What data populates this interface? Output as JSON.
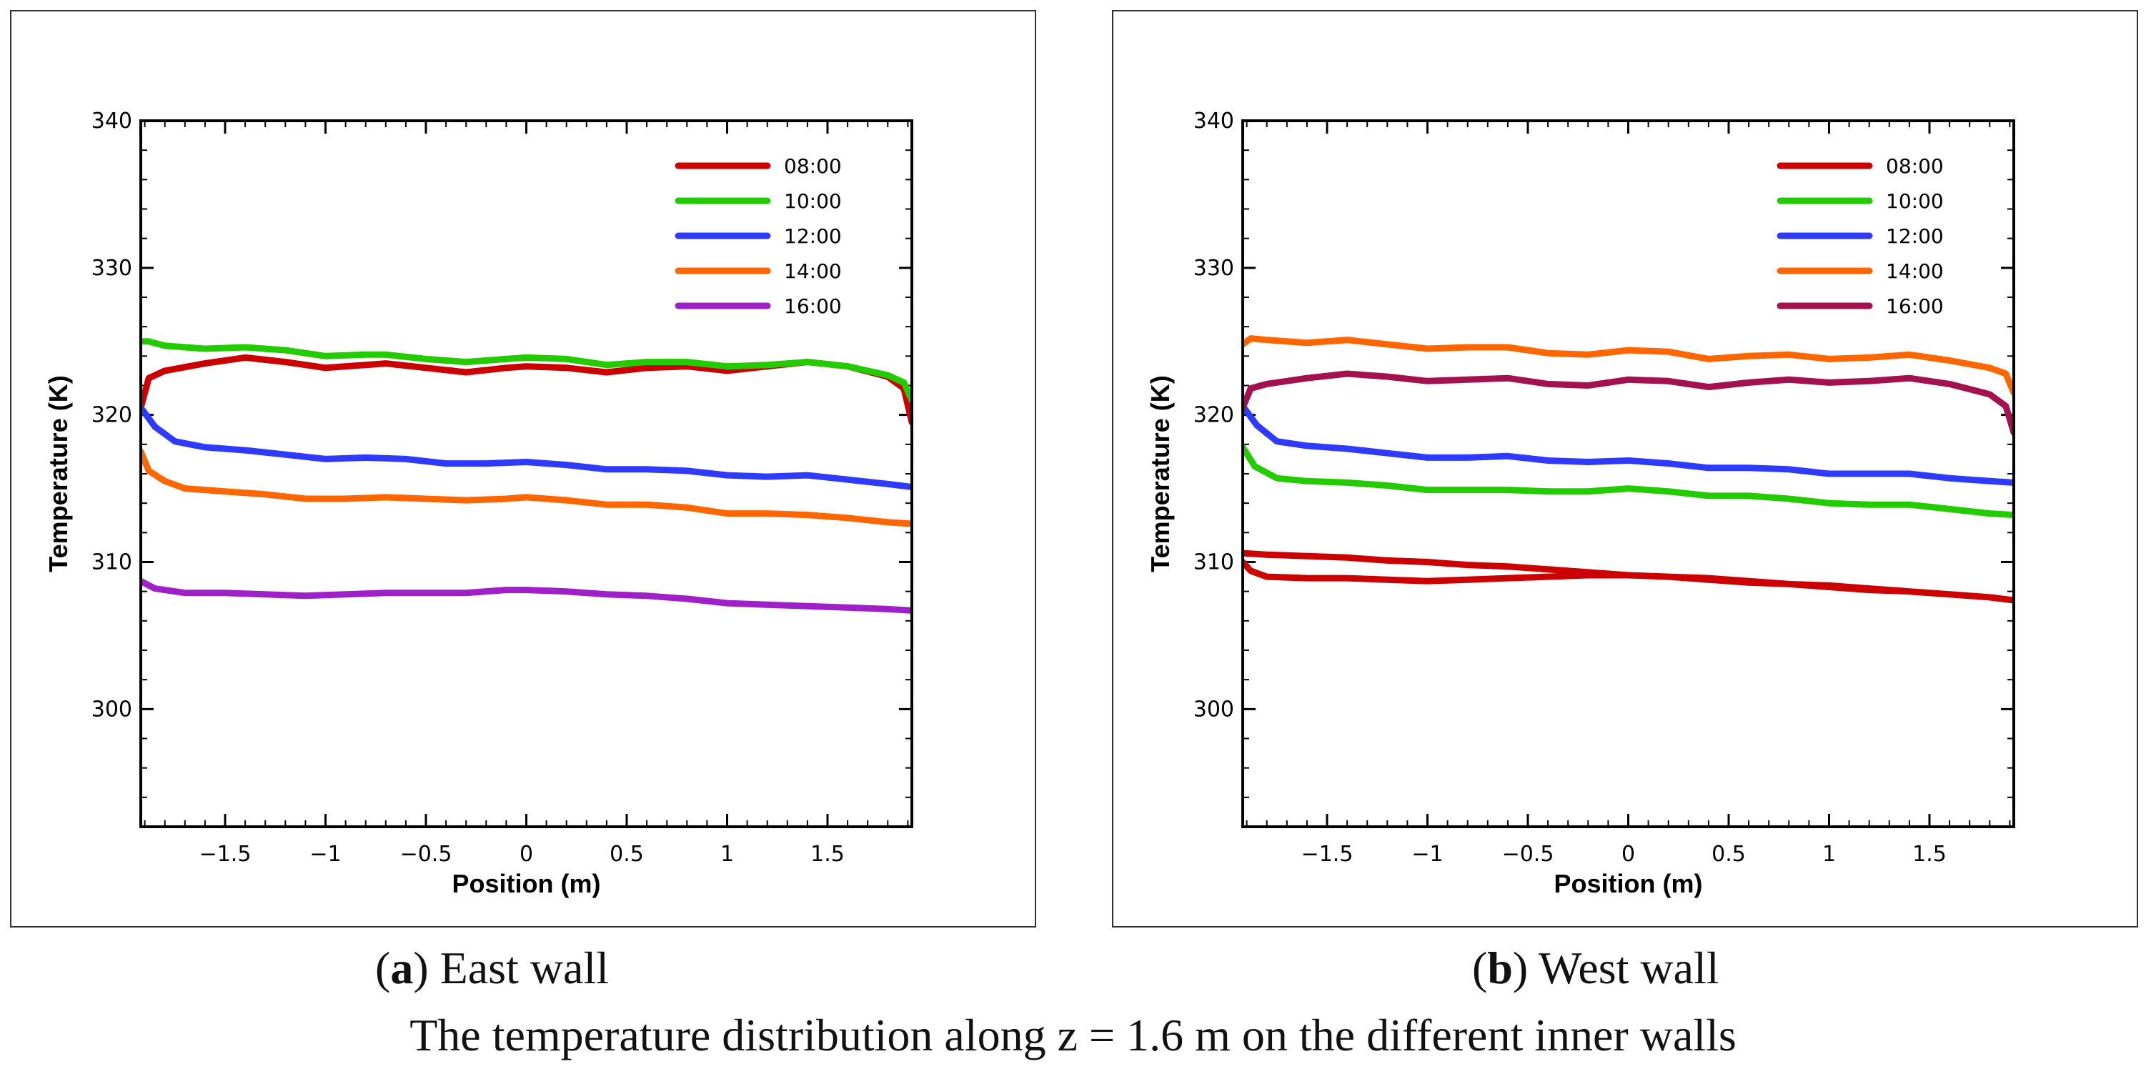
{
  "figure_caption": "The temperature distribution along z = 1.6 m on the different inner walls",
  "panels": [
    {
      "letter": "a",
      "name": "East wall"
    },
    {
      "letter": "b",
      "name": "West wall"
    }
  ],
  "chart_data": [
    {
      "type": "line",
      "panel": "a",
      "title": "East wall",
      "xlabel": "Position (m)",
      "ylabel": "Temperature (K)",
      "xlim": [
        -1.92,
        1.92
      ],
      "ylim": [
        292,
        340
      ],
      "xticks": [
        -1.5,
        -1,
        -0.5,
        0,
        0.5,
        1,
        1.5
      ],
      "xtick_labels": [
        "−1.5",
        "−1",
        "−0.5",
        "0",
        "0.5",
        "1",
        "1.5"
      ],
      "yticks": [
        300,
        310,
        320,
        330,
        340
      ],
      "ytick_labels": [
        "300",
        "310",
        "320",
        "330",
        "340"
      ],
      "legend_position": "top-right",
      "series": [
        {
          "name": "08:00",
          "color": "#cc0000",
          "x": [
            -1.92,
            -1.88,
            -1.8,
            -1.6,
            -1.4,
            -1.2,
            -1.0,
            -0.8,
            -0.7,
            -0.5,
            -0.3,
            -0.1,
            0.0,
            0.2,
            0.4,
            0.6,
            0.8,
            1.0,
            1.2,
            1.4,
            1.6,
            1.8,
            1.88,
            1.92
          ],
          "y": [
            320.5,
            322.5,
            323.0,
            323.5,
            323.9,
            323.6,
            323.2,
            323.4,
            323.5,
            323.2,
            322.9,
            323.2,
            323.3,
            323.2,
            322.9,
            323.2,
            323.3,
            323.0,
            323.3,
            323.6,
            323.3,
            322.6,
            321.8,
            319.5
          ]
        },
        {
          "name": "10:00",
          "color": "#22cc00",
          "x": [
            -1.92,
            -1.88,
            -1.8,
            -1.6,
            -1.4,
            -1.2,
            -1.0,
            -0.8,
            -0.7,
            -0.5,
            -0.3,
            -0.1,
            0.0,
            0.2,
            0.4,
            0.6,
            0.8,
            1.0,
            1.2,
            1.4,
            1.6,
            1.8,
            1.88,
            1.92
          ],
          "y": [
            325.0,
            325.0,
            324.7,
            324.5,
            324.6,
            324.4,
            324.0,
            324.1,
            324.1,
            323.8,
            323.6,
            323.8,
            323.9,
            323.8,
            323.4,
            323.6,
            323.6,
            323.3,
            323.4,
            323.6,
            323.3,
            322.7,
            322.2,
            321.0
          ]
        },
        {
          "name": "12:00",
          "color": "#2f3aff",
          "x": [
            -1.92,
            -1.85,
            -1.75,
            -1.6,
            -1.4,
            -1.2,
            -1.0,
            -0.8,
            -0.6,
            -0.4,
            -0.2,
            0.0,
            0.2,
            0.4,
            0.6,
            0.8,
            1.0,
            1.2,
            1.4,
            1.6,
            1.8,
            1.92
          ],
          "y": [
            320.5,
            319.2,
            318.2,
            317.8,
            317.6,
            317.3,
            317.0,
            317.1,
            317.0,
            316.7,
            316.7,
            316.8,
            316.6,
            316.3,
            316.3,
            316.2,
            315.9,
            315.8,
            315.9,
            315.6,
            315.3,
            315.1
          ]
        },
        {
          "name": "14:00",
          "color": "#ff6600",
          "x": [
            -1.92,
            -1.88,
            -1.8,
            -1.7,
            -1.5,
            -1.3,
            -1.1,
            -0.9,
            -0.7,
            -0.5,
            -0.3,
            -0.1,
            0.0,
            0.2,
            0.4,
            0.6,
            0.8,
            1.0,
            1.2,
            1.4,
            1.6,
            1.8,
            1.92
          ],
          "y": [
            317.5,
            316.2,
            315.5,
            315.0,
            314.8,
            314.6,
            314.3,
            314.3,
            314.4,
            314.3,
            314.2,
            314.3,
            314.4,
            314.2,
            313.9,
            313.9,
            313.7,
            313.3,
            313.3,
            313.2,
            313.0,
            312.7,
            312.6
          ]
        },
        {
          "name": "16:00",
          "color": "#a020c8",
          "x": [
            -1.92,
            -1.85,
            -1.7,
            -1.5,
            -1.3,
            -1.1,
            -0.9,
            -0.7,
            -0.5,
            -0.3,
            -0.1,
            0.0,
            0.2,
            0.4,
            0.6,
            0.8,
            1.0,
            1.2,
            1.4,
            1.6,
            1.8,
            1.92
          ],
          "y": [
            308.7,
            308.2,
            307.9,
            307.9,
            307.8,
            307.7,
            307.8,
            307.9,
            307.9,
            307.9,
            308.1,
            308.1,
            308.0,
            307.8,
            307.7,
            307.5,
            307.2,
            307.1,
            307.0,
            306.9,
            306.8,
            306.7
          ]
        }
      ]
    },
    {
      "type": "line",
      "panel": "b",
      "title": "West wall",
      "xlabel": "Position (m)",
      "ylabel": "Temperature (K)",
      "xlim": [
        -1.92,
        1.92
      ],
      "ylim": [
        292,
        340
      ],
      "xticks": [
        -1.5,
        -1,
        -0.5,
        0,
        0.5,
        1,
        1.5
      ],
      "xtick_labels": [
        "−1.5",
        "−1",
        "−0.5",
        "0",
        "0.5",
        "1",
        "1.5"
      ],
      "yticks": [
        300,
        310,
        320,
        330,
        340
      ],
      "ytick_labels": [
        "300",
        "310",
        "320",
        "330",
        "340"
      ],
      "legend_position": "top-right",
      "series": [
        {
          "name": "08:00",
          "color": "#cc0000",
          "x": [
            -1.92,
            -1.88,
            -1.8,
            -1.6,
            -1.4,
            -1.2,
            -1.0,
            -0.8,
            -0.6,
            -0.4,
            -0.2,
            0.0,
            0.2,
            0.4,
            0.6,
            0.8,
            1.0,
            1.2,
            1.4,
            1.6,
            1.8,
            1.92,
            1.8,
            1.6,
            1.4,
            1.2,
            1.0,
            0.8,
            0.6,
            0.4,
            0.2,
            0.0,
            -0.2,
            -0.4,
            -0.6,
            -0.8,
            -1.0,
            -1.2,
            -1.4,
            -1.6,
            -1.8,
            -1.92
          ],
          "y": [
            310.0,
            309.4,
            309.0,
            308.9,
            308.9,
            308.8,
            308.7,
            308.8,
            308.9,
            309.0,
            309.1,
            309.1,
            309.0,
            308.8,
            308.6,
            308.5,
            308.3,
            308.1,
            308.0,
            307.8,
            307.6,
            307.4,
            307.6,
            307.8,
            308.0,
            308.2,
            308.4,
            308.5,
            308.7,
            308.9,
            309.0,
            309.1,
            309.3,
            309.5,
            309.7,
            309.8,
            310.0,
            310.1,
            310.3,
            310.4,
            310.5,
            310.6
          ]
        },
        {
          "name": "10:00",
          "color": "#22cc00",
          "x": [
            -1.92,
            -1.86,
            -1.75,
            -1.6,
            -1.4,
            -1.2,
            -1.0,
            -0.8,
            -0.6,
            -0.4,
            -0.2,
            0.0,
            0.2,
            0.4,
            0.6,
            0.8,
            1.0,
            1.2,
            1.4,
            1.6,
            1.8,
            1.92
          ],
          "y": [
            317.8,
            316.5,
            315.7,
            315.5,
            315.4,
            315.2,
            314.9,
            314.9,
            314.9,
            314.8,
            314.8,
            315.0,
            314.8,
            314.5,
            314.5,
            314.3,
            314.0,
            313.9,
            313.9,
            313.6,
            313.3,
            313.2
          ]
        },
        {
          "name": "12:00",
          "color": "#2f3aff",
          "x": [
            -1.92,
            -1.85,
            -1.75,
            -1.6,
            -1.4,
            -1.2,
            -1.0,
            -0.8,
            -0.6,
            -0.4,
            -0.2,
            0.0,
            0.2,
            0.4,
            0.6,
            0.8,
            1.0,
            1.2,
            1.4,
            1.6,
            1.8,
            1.92
          ],
          "y": [
            320.6,
            319.3,
            318.2,
            317.9,
            317.7,
            317.4,
            317.1,
            317.1,
            317.2,
            316.9,
            316.8,
            316.9,
            316.7,
            316.4,
            316.4,
            316.3,
            316.0,
            316.0,
            316.0,
            315.7,
            315.5,
            315.4
          ]
        },
        {
          "name": "14:00",
          "color": "#ff6600",
          "x": [
            -1.92,
            -1.88,
            -1.8,
            -1.6,
            -1.4,
            -1.2,
            -1.0,
            -0.8,
            -0.6,
            -0.4,
            -0.2,
            0.0,
            0.2,
            0.4,
            0.6,
            0.8,
            1.0,
            1.2,
            1.4,
            1.6,
            1.8,
            1.88,
            1.92
          ],
          "y": [
            324.8,
            325.2,
            325.1,
            324.9,
            325.1,
            324.8,
            324.5,
            324.6,
            324.6,
            324.2,
            324.1,
            324.4,
            324.3,
            323.8,
            324.0,
            324.1,
            323.8,
            323.9,
            324.1,
            323.7,
            323.2,
            322.8,
            321.5
          ]
        },
        {
          "name": "16:00",
          "color": "#a3124f",
          "x": [
            -1.92,
            -1.88,
            -1.8,
            -1.6,
            -1.4,
            -1.2,
            -1.0,
            -0.8,
            -0.6,
            -0.4,
            -0.2,
            0.0,
            0.2,
            0.4,
            0.6,
            0.8,
            1.0,
            1.2,
            1.4,
            1.6,
            1.8,
            1.88,
            1.92
          ],
          "y": [
            320.5,
            321.8,
            322.1,
            322.5,
            322.8,
            322.6,
            322.3,
            322.4,
            322.5,
            322.1,
            322.0,
            322.4,
            322.3,
            321.9,
            322.2,
            322.4,
            322.2,
            322.3,
            322.5,
            322.1,
            321.4,
            320.6,
            318.8
          ]
        }
      ]
    }
  ]
}
